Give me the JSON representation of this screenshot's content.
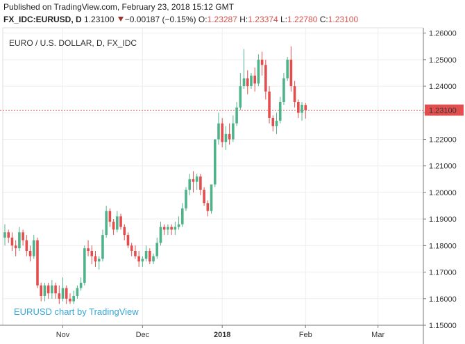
{
  "header": {
    "published": "Published on TradingView.com, February 23, 2018 15:12 GMT",
    "symbol": "FX_IDC:EURUSD, D",
    "last": "1.23100",
    "change": "−0.00187 (−0.15%)",
    "o_label": "O:",
    "o_value": "1.23287",
    "h_label": "H:",
    "h_value": "1.23374",
    "l_label": "L:",
    "l_value": "1.22780",
    "c_label": "C:",
    "c_value": "1.23100"
  },
  "colors": {
    "up": "#4fb38a",
    "down": "#e24e4e",
    "last_price": "#e24e4e",
    "grid": "#eeeeee",
    "watermark": "#35a6d6"
  },
  "chart_data": {
    "type": "candlestick",
    "title": "EURO / U.S. DOLLAR, D, FX_IDC",
    "watermark": "EURUSD chart by TradingView",
    "ylim": [
      1.15,
      1.262
    ],
    "y_ticks": [
      "1.26000",
      "1.25000",
      "1.24000",
      "1.23000",
      "1.22000",
      "1.21000",
      "1.20000",
      "1.19000",
      "1.18000",
      "1.17000",
      "1.16000",
      "1.15000"
    ],
    "x_ticks": [
      {
        "label": "Nov",
        "bold": false,
        "bar": 16
      },
      {
        "label": "Dec",
        "bold": false,
        "bar": 38
      },
      {
        "label": "2018",
        "bold": true,
        "bar": 60
      },
      {
        "label": "Feb",
        "bold": false,
        "bar": 83
      },
      {
        "label": "Mar",
        "bold": false,
        "bar": 103
      }
    ],
    "last_price": 1.231,
    "last_price_label": "1.23100",
    "grid": true,
    "candles": [
      [
        1.183,
        1.188,
        1.18,
        1.185
      ],
      [
        1.185,
        1.186,
        1.181,
        1.183
      ],
      [
        1.183,
        1.185,
        1.178,
        1.18
      ],
      [
        1.18,
        1.182,
        1.176,
        1.179
      ],
      [
        1.179,
        1.187,
        1.178,
        1.185
      ],
      [
        1.185,
        1.186,
        1.18,
        1.182
      ],
      [
        1.182,
        1.184,
        1.176,
        1.178
      ],
      [
        1.178,
        1.18,
        1.174,
        1.176
      ],
      [
        1.176,
        1.184,
        1.175,
        1.182
      ],
      [
        1.182,
        1.183,
        1.164,
        1.165
      ],
      [
        1.165,
        1.166,
        1.159,
        1.161
      ],
      [
        1.161,
        1.166,
        1.159,
        1.165
      ],
      [
        1.165,
        1.166,
        1.16,
        1.162
      ],
      [
        1.162,
        1.167,
        1.16,
        1.165
      ],
      [
        1.165,
        1.166,
        1.16,
        1.162
      ],
      [
        1.162,
        1.165,
        1.158,
        1.16
      ],
      [
        1.16,
        1.168,
        1.159,
        1.164
      ],
      [
        1.164,
        1.165,
        1.158,
        1.16
      ],
      [
        1.16,
        1.162,
        1.158,
        1.159
      ],
      [
        1.159,
        1.163,
        1.158,
        1.161
      ],
      [
        1.161,
        1.165,
        1.16,
        1.164
      ],
      [
        1.164,
        1.168,
        1.163,
        1.166
      ],
      [
        1.166,
        1.18,
        1.165,
        1.179
      ],
      [
        1.179,
        1.182,
        1.176,
        1.178
      ],
      [
        1.178,
        1.18,
        1.173,
        1.176
      ],
      [
        1.176,
        1.178,
        1.172,
        1.174
      ],
      [
        1.174,
        1.176,
        1.171,
        1.175
      ],
      [
        1.175,
        1.186,
        1.174,
        1.184
      ],
      [
        1.184,
        1.195,
        1.183,
        1.193
      ],
      [
        1.193,
        1.194,
        1.187,
        1.189
      ],
      [
        1.189,
        1.19,
        1.184,
        1.186
      ],
      [
        1.186,
        1.193,
        1.185,
        1.191
      ],
      [
        1.191,
        1.192,
        1.186,
        1.187
      ],
      [
        1.187,
        1.188,
        1.182,
        1.184
      ],
      [
        1.184,
        1.185,
        1.179,
        1.18
      ],
      [
        1.18,
        1.181,
        1.176,
        1.178
      ],
      [
        1.178,
        1.18,
        1.175,
        1.176
      ],
      [
        1.176,
        1.178,
        1.172,
        1.174
      ],
      [
        1.174,
        1.176,
        1.172,
        1.175
      ],
      [
        1.175,
        1.18,
        1.174,
        1.178
      ],
      [
        1.178,
        1.179,
        1.173,
        1.174
      ],
      [
        1.174,
        1.177,
        1.173,
        1.176
      ],
      [
        1.176,
        1.183,
        1.175,
        1.181
      ],
      [
        1.181,
        1.189,
        1.18,
        1.187
      ],
      [
        1.187,
        1.188,
        1.184,
        1.186
      ],
      [
        1.186,
        1.188,
        1.184,
        1.187
      ],
      [
        1.187,
        1.188,
        1.184,
        1.186
      ],
      [
        1.186,
        1.189,
        1.184,
        1.187
      ],
      [
        1.187,
        1.191,
        1.186,
        1.188
      ],
      [
        1.188,
        1.196,
        1.187,
        1.194
      ],
      [
        1.194,
        1.202,
        1.193,
        1.201
      ],
      [
        1.201,
        1.207,
        1.199,
        1.205
      ],
      [
        1.205,
        1.208,
        1.2,
        1.204
      ],
      [
        1.204,
        1.207,
        1.201,
        1.206
      ],
      [
        1.206,
        1.207,
        1.199,
        1.201
      ],
      [
        1.201,
        1.202,
        1.195,
        1.196
      ],
      [
        1.196,
        1.197,
        1.191,
        1.193
      ],
      [
        1.193,
        1.203,
        1.192,
        1.203
      ],
      [
        1.203,
        1.22,
        1.202,
        1.22
      ],
      [
        1.22,
        1.23,
        1.218,
        1.226
      ],
      [
        1.226,
        1.228,
        1.217,
        1.219
      ],
      [
        1.219,
        1.225,
        1.216,
        1.222
      ],
      [
        1.222,
        1.226,
        1.218,
        1.22
      ],
      [
        1.22,
        1.229,
        1.219,
        1.226
      ],
      [
        1.226,
        1.234,
        1.225,
        1.232
      ],
      [
        1.232,
        1.245,
        1.231,
        1.24
      ],
      [
        1.24,
        1.254,
        1.239,
        1.243
      ],
      [
        1.243,
        1.246,
        1.237,
        1.24
      ],
      [
        1.24,
        1.245,
        1.239,
        1.244
      ],
      [
        1.244,
        1.247,
        1.238,
        1.241
      ],
      [
        1.241,
        1.252,
        1.24,
        1.25
      ],
      [
        1.25,
        1.253,
        1.244,
        1.248
      ],
      [
        1.248,
        1.25,
        1.235,
        1.238
      ],
      [
        1.238,
        1.24,
        1.226,
        1.228
      ],
      [
        1.228,
        1.229,
        1.223,
        1.225
      ],
      [
        1.225,
        1.23,
        1.222,
        1.227
      ],
      [
        1.227,
        1.236,
        1.226,
        1.234
      ],
      [
        1.234,
        1.245,
        1.233,
        1.243
      ],
      [
        1.243,
        1.251,
        1.242,
        1.25
      ],
      [
        1.25,
        1.255,
        1.238,
        1.24
      ],
      [
        1.24,
        1.242,
        1.232,
        1.234
      ],
      [
        1.234,
        1.235,
        1.228,
        1.23
      ],
      [
        1.23,
        1.234,
        1.227,
        1.233
      ],
      [
        1.2329,
        1.2337,
        1.2278,
        1.231
      ]
    ]
  }
}
